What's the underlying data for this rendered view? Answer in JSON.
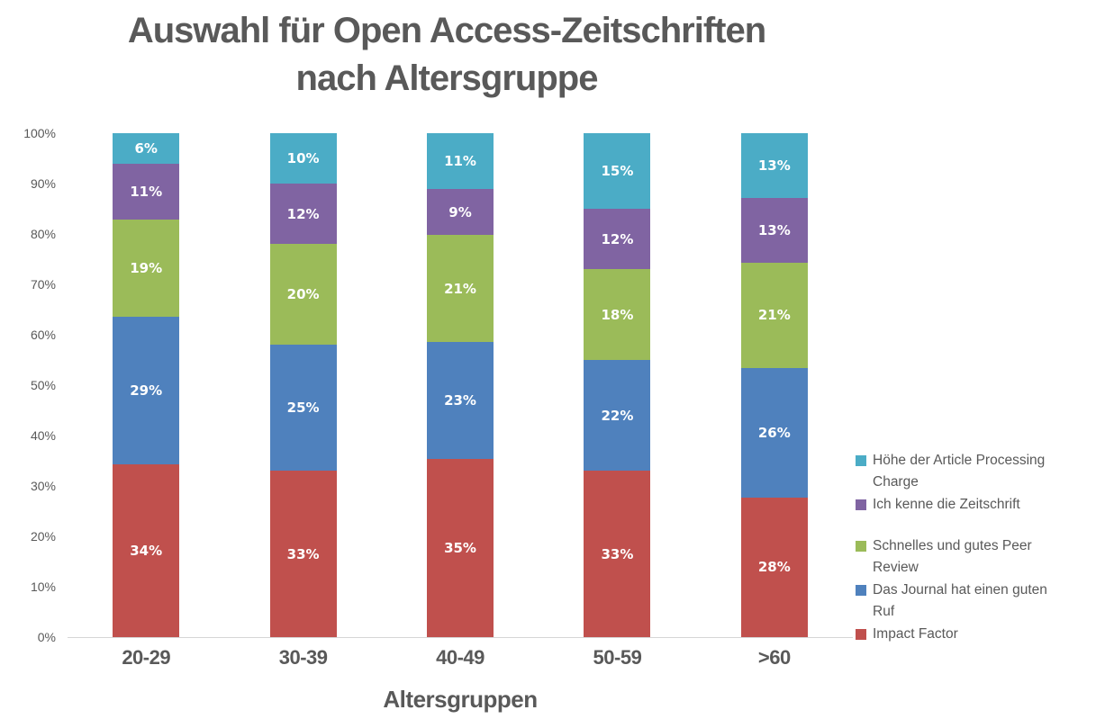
{
  "title": {
    "line1": "Auswahl für Open Access-Zeitschriften",
    "line2": "nach Altersgruppe"
  },
  "chart_data": {
    "type": "bar",
    "variant": "stacked-100-percent-column",
    "title": "Auswahl für Open Access-Zeitschriften nach Altersgruppe",
    "xlabel": "Altersgruppen",
    "ylabel": "",
    "categories": [
      "20-29",
      "30-39",
      "40-49",
      "50-59",
      ">60"
    ],
    "series": [
      {
        "name": "Impact Factor",
        "color": "#C0504D",
        "values": [
          34,
          33,
          35,
          33,
          28
        ]
      },
      {
        "name": "Das Journal hat einen guten Ruf",
        "color": "#4F81BD",
        "values": [
          29,
          25,
          23,
          22,
          26
        ]
      },
      {
        "name": "Schnelles und gutes Peer Review",
        "color": "#9BBB59",
        "values": [
          19,
          20,
          21,
          18,
          21
        ]
      },
      {
        "name": "Ich kenne die Zeitschrift",
        "color": "#8064A2",
        "values": [
          11,
          12,
          9,
          12,
          13
        ]
      },
      {
        "name": "Höhe der Article Processing Charge",
        "color": "#4BACC6",
        "values": [
          6,
          10,
          11,
          15,
          13
        ]
      }
    ],
    "data_label_suffix": "%",
    "y_axis_ticks": [
      "0%",
      "10%",
      "20%",
      "30%",
      "40%",
      "50%",
      "60%",
      "70%",
      "80%",
      "90%",
      "100%"
    ],
    "ylim": [
      0,
      100
    ],
    "grid": false,
    "legend_position": "right",
    "legend_order_top_to_bottom": [
      "Höhe der Article Processing Charge",
      "Ich kenne die Zeitschrift",
      "Schnelles und gutes Peer Review",
      "Das Journal hat einen guten Ruf",
      "Impact Factor"
    ]
  },
  "colors": {
    "title_text": "#595959",
    "axis_text": "#595959",
    "axis_line": "#D6D6D6",
    "data_label_text": "#FFFFFF",
    "background": "#FFFFFF"
  }
}
